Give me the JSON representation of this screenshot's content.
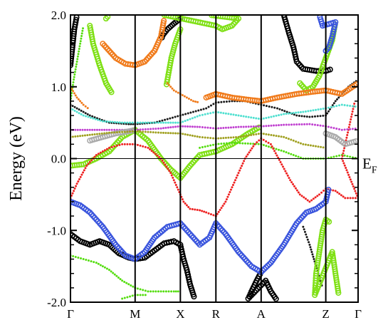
{
  "chart_data": {
    "type": "scatter",
    "ylabel": "Energy (eV)",
    "ylim": [
      -2.0,
      2.0
    ],
    "yticks": [
      {
        "value": 2.0,
        "label": "2.0"
      },
      {
        "value": 1.0,
        "label": "1.0"
      },
      {
        "value": 0.0,
        "label": "0.0"
      },
      {
        "value": -1.0,
        "label": "-1.0"
      },
      {
        "value": -2.0,
        "label": "-2.0"
      }
    ],
    "kpoints": [
      {
        "label": "Γ",
        "x": 0.0
      },
      {
        "label": "M",
        "x": 1.0
      },
      {
        "label": "X",
        "x": 1.7
      },
      {
        "label": "R",
        "x": 2.25
      },
      {
        "label": "A",
        "x": 2.95
      },
      {
        "label": "Z",
        "x": 3.95
      },
      {
        "label": "Γ",
        "x": 4.45
      }
    ],
    "fermi_label": "E",
    "fermi_sub": "F",
    "fermi_level": 0.0,
    "grid": false,
    "series": [
      {
        "color": "#000000",
        "marker": "ring",
        "points": [
          [
            0,
            -1.05
          ],
          [
            0.15,
            -1.15
          ],
          [
            0.3,
            -1.2
          ],
          [
            0.45,
            -1.15
          ],
          [
            0.6,
            -1.2
          ],
          [
            0.75,
            -1.32
          ],
          [
            0.9,
            -1.38
          ],
          [
            1.0,
            -1.4
          ],
          [
            1.15,
            -1.38
          ],
          [
            1.3,
            -1.28
          ],
          [
            1.45,
            -1.18
          ],
          [
            1.6,
            -1.15
          ],
          [
            1.7,
            -1.2
          ],
          [
            1.75,
            -1.4
          ],
          [
            1.8,
            -1.55
          ],
          [
            1.85,
            -1.75
          ],
          [
            1.92,
            -1.95
          ],
          [
            0.0,
            1.3
          ],
          [
            0.03,
            1.55
          ],
          [
            0.06,
            1.8
          ],
          [
            0.1,
            2.0
          ],
          [
            1.7,
            1.95
          ],
          [
            1.6,
            1.88
          ],
          [
            1.5,
            1.8
          ],
          [
            1.43,
            1.72
          ],
          [
            1.4,
            1.65
          ],
          [
            2.95,
            -1.58
          ],
          [
            2.88,
            -1.7
          ],
          [
            2.8,
            -1.85
          ],
          [
            2.75,
            -1.95
          ],
          [
            3.02,
            -1.7
          ],
          [
            3.1,
            -1.85
          ],
          [
            3.2,
            -1.98
          ],
          [
            3.3,
            2.0
          ],
          [
            3.38,
            1.75
          ],
          [
            3.45,
            1.55
          ],
          [
            3.5,
            1.35
          ],
          [
            3.6,
            1.25
          ],
          [
            3.8,
            1.22
          ],
          [
            3.95,
            1.22
          ],
          [
            4.05,
            1.25
          ]
        ]
      },
      {
        "color": "#1a1a1a",
        "marker": "dot",
        "points": [
          [
            0.0,
            0.75
          ],
          [
            0.3,
            0.6
          ],
          [
            0.6,
            0.5
          ],
          [
            0.9,
            0.48
          ],
          [
            1.0,
            0.48
          ],
          [
            1.3,
            0.5
          ],
          [
            1.5,
            0.55
          ],
          [
            1.7,
            0.6
          ],
          [
            1.9,
            0.65
          ],
          [
            2.1,
            0.7
          ],
          [
            2.25,
            0.78
          ],
          [
            2.5,
            0.8
          ],
          [
            2.7,
            0.8
          ],
          [
            2.95,
            0.75
          ],
          [
            3.2,
            0.7
          ],
          [
            3.5,
            0.6
          ],
          [
            3.7,
            0.58
          ],
          [
            3.95,
            0.6
          ],
          [
            4.1,
            0.8
          ],
          [
            4.3,
            1.0
          ],
          [
            4.45,
            1.1
          ],
          [
            3.6,
            -0.95
          ],
          [
            3.7,
            -1.2
          ],
          [
            3.8,
            -1.5
          ],
          [
            3.9,
            -1.8
          ]
        ]
      },
      {
        "color": "#7fe015",
        "marker": "ring",
        "points": [
          [
            0,
            -0.1
          ],
          [
            0.2,
            -0.08
          ],
          [
            0.4,
            0.0
          ],
          [
            0.6,
            0.1
          ],
          [
            0.8,
            0.3
          ],
          [
            1.0,
            0.4
          ],
          [
            1.2,
            0.25
          ],
          [
            1.4,
            0.0
          ],
          [
            1.55,
            -0.15
          ],
          [
            1.7,
            -0.27
          ],
          [
            1.85,
            -0.1
          ],
          [
            2.0,
            0.05
          ],
          [
            2.25,
            0.1
          ],
          [
            2.5,
            0.2
          ],
          [
            2.75,
            0.35
          ],
          [
            2.95,
            0.45
          ],
          [
            1.7,
            1.8
          ],
          [
            1.62,
            1.6
          ],
          [
            1.56,
            1.4
          ],
          [
            1.52,
            1.2
          ],
          [
            1.48,
            1.0
          ],
          [
            1.45,
            2.0
          ],
          [
            2.25,
            1.85
          ],
          [
            2.35,
            1.8
          ],
          [
            2.5,
            1.85
          ],
          [
            2.6,
            1.95
          ],
          [
            2.15,
            2.0
          ],
          [
            4.0,
            -0.88
          ],
          [
            3.95,
            -0.85
          ],
          [
            3.9,
            -1.0
          ],
          [
            3.85,
            -1.3
          ],
          [
            3.8,
            -1.6
          ],
          [
            3.78,
            -1.9
          ],
          [
            4.05,
            -1.3
          ],
          [
            4.1,
            -1.6
          ],
          [
            4.15,
            -1.9
          ],
          [
            0.3,
            1.85
          ],
          [
            0.35,
            1.6
          ],
          [
            0.45,
            1.3
          ],
          [
            0.55,
            1.05
          ],
          [
            0.65,
            0.9
          ],
          [
            0.55,
            1.95
          ],
          [
            0.6,
            2.0
          ],
          [
            3.55,
            1.05
          ],
          [
            3.65,
            0.95
          ],
          [
            3.75,
            1.0
          ],
          [
            3.85,
            1.15
          ],
          [
            3.95,
            1.4
          ],
          [
            4.05,
            1.65
          ],
          [
            4.1,
            1.9
          ]
        ]
      },
      {
        "color": "#55dd10",
        "marker": "dot",
        "points": [
          [
            0.0,
            -1.35
          ],
          [
            0.2,
            -1.4
          ],
          [
            0.4,
            -1.45
          ],
          [
            0.6,
            -1.55
          ],
          [
            0.8,
            -1.7
          ],
          [
            1.0,
            -1.8
          ],
          [
            1.2,
            -1.85
          ],
          [
            1.4,
            -1.85
          ],
          [
            1.6,
            -1.85
          ],
          [
            1.7,
            -1.85
          ],
          [
            0.8,
            -1.95
          ],
          [
            1.0,
            -1.9
          ],
          [
            1.2,
            -1.9
          ],
          [
            0.0,
            0.8
          ],
          [
            0.05,
            1.1
          ],
          [
            0.1,
            1.35
          ],
          [
            0.15,
            1.6
          ],
          [
            0.2,
            1.85
          ],
          [
            2.0,
            0.15
          ],
          [
            2.25,
            0.2
          ],
          [
            2.5,
            0.22
          ],
          [
            2.95,
            0.2
          ],
          [
            3.3,
            0.1
          ],
          [
            3.6,
            0.0
          ],
          [
            3.95,
            0.0
          ],
          [
            4.2,
            0.05
          ],
          [
            4.45,
            0.0
          ]
        ]
      },
      {
        "color": "#f07a1a",
        "marker": "ring",
        "points": [
          [
            0.5,
            1.6
          ],
          [
            0.7,
            1.4
          ],
          [
            0.85,
            1.32
          ],
          [
            1.0,
            1.3
          ],
          [
            1.15,
            1.35
          ],
          [
            1.3,
            1.5
          ],
          [
            1.4,
            1.7
          ],
          [
            1.45,
            1.95
          ],
          [
            2.1,
            0.85
          ],
          [
            2.25,
            0.9
          ],
          [
            2.5,
            0.85
          ],
          [
            2.75,
            0.82
          ],
          [
            2.95,
            0.8
          ],
          [
            3.2,
            0.85
          ],
          [
            3.5,
            0.9
          ],
          [
            3.75,
            0.93
          ],
          [
            3.95,
            0.95
          ],
          [
            4.2,
            0.9
          ],
          [
            4.45,
            1.05
          ]
        ]
      },
      {
        "color": "#f07a1a",
        "marker": "dot",
        "points": [
          [
            0.0,
            1.0
          ],
          [
            0.1,
            0.85
          ],
          [
            0.2,
            0.75
          ],
          [
            0.3,
            0.68
          ],
          [
            1.5,
            1.05
          ],
          [
            1.6,
            0.95
          ],
          [
            1.7,
            0.9
          ],
          [
            1.8,
            0.85
          ],
          [
            1.9,
            0.8
          ],
          [
            2.0,
            0.78
          ]
        ]
      },
      {
        "color": "#ee2222",
        "marker": "dot",
        "points": [
          [
            0.0,
            -0.55
          ],
          [
            0.1,
            -0.35
          ],
          [
            0.25,
            -0.1
          ],
          [
            0.4,
            0.05
          ],
          [
            0.6,
            0.15
          ],
          [
            0.8,
            0.2
          ],
          [
            1.0,
            0.2
          ],
          [
            1.2,
            0.15
          ],
          [
            1.4,
            0.0
          ],
          [
            1.55,
            -0.2
          ],
          [
            1.65,
            -0.4
          ],
          [
            1.75,
            -0.6
          ],
          [
            1.85,
            -0.7
          ],
          [
            2.0,
            -0.72
          ],
          [
            2.1,
            -0.75
          ],
          [
            2.25,
            -0.8
          ],
          [
            2.25,
            -0.8
          ],
          [
            2.4,
            -0.6
          ],
          [
            2.55,
            -0.3
          ],
          [
            2.7,
            0.0
          ],
          [
            2.85,
            0.2
          ],
          [
            2.95,
            0.28
          ],
          [
            3.1,
            0.2
          ],
          [
            3.25,
            -0.05
          ],
          [
            3.4,
            -0.3
          ],
          [
            3.55,
            -0.5
          ],
          [
            3.7,
            -0.6
          ],
          [
            3.85,
            -0.5
          ],
          [
            3.95,
            -0.42
          ],
          [
            4.1,
            -0.45
          ],
          [
            4.25,
            -0.55
          ],
          [
            4.45,
            -0.55
          ],
          [
            4.2,
            0.0
          ],
          [
            4.3,
            0.4
          ],
          [
            4.4,
            0.8
          ]
        ]
      },
      {
        "color": "#3a55dd",
        "marker": "ring",
        "points": [
          [
            0.0,
            -0.6
          ],
          [
            0.15,
            -0.65
          ],
          [
            0.3,
            -0.75
          ],
          [
            0.5,
            -0.95
          ],
          [
            0.7,
            -1.2
          ],
          [
            0.85,
            -1.35
          ],
          [
            1.0,
            -1.4
          ],
          [
            1.15,
            -1.3
          ],
          [
            1.3,
            -1.1
          ],
          [
            1.5,
            -0.95
          ],
          [
            1.7,
            -0.9
          ],
          [
            1.85,
            -1.05
          ],
          [
            2.0,
            -1.2
          ],
          [
            2.15,
            -1.1
          ],
          [
            2.25,
            -0.9
          ],
          [
            2.4,
            -1.05
          ],
          [
            2.6,
            -1.3
          ],
          [
            2.8,
            -1.5
          ],
          [
            2.95,
            -1.58
          ],
          [
            3.1,
            -1.45
          ],
          [
            3.3,
            -1.2
          ],
          [
            3.5,
            -0.9
          ],
          [
            3.65,
            -0.75
          ],
          [
            3.8,
            -0.7
          ],
          [
            3.95,
            -0.6
          ],
          [
            4.0,
            -0.4
          ],
          [
            3.95,
            1.5
          ],
          [
            4.0,
            1.55
          ],
          [
            4.05,
            1.7
          ],
          [
            4.1,
            1.9
          ],
          [
            3.9,
            1.85
          ],
          [
            3.85,
            2.0
          ]
        ]
      },
      {
        "color": "#50e0d0",
        "marker": "dot",
        "points": [
          [
            0.0,
            0.7
          ],
          [
            0.2,
            0.6
          ],
          [
            0.5,
            0.52
          ],
          [
            0.8,
            0.5
          ],
          [
            1.0,
            0.5
          ],
          [
            1.4,
            0.5
          ],
          [
            1.7,
            0.5
          ],
          [
            2.0,
            0.6
          ],
          [
            2.25,
            0.65
          ],
          [
            2.6,
            0.6
          ],
          [
            2.95,
            0.55
          ],
          [
            3.3,
            0.62
          ],
          [
            3.6,
            0.65
          ],
          [
            3.95,
            0.7
          ],
          [
            4.2,
            0.75
          ],
          [
            4.45,
            0.72
          ]
        ]
      },
      {
        "color": "#c040d0",
        "marker": "dot",
        "points": [
          [
            0.0,
            0.4
          ],
          [
            0.3,
            0.4
          ],
          [
            0.6,
            0.4
          ],
          [
            1.0,
            0.4
          ],
          [
            1.4,
            0.42
          ],
          [
            1.7,
            0.45
          ],
          [
            2.0,
            0.44
          ],
          [
            2.25,
            0.42
          ],
          [
            2.6,
            0.44
          ],
          [
            2.95,
            0.45
          ],
          [
            3.3,
            0.47
          ],
          [
            3.7,
            0.48
          ],
          [
            3.95,
            0.45
          ],
          [
            4.2,
            0.4
          ],
          [
            4.45,
            0.42
          ]
        ]
      },
      {
        "color": "#aaaaaa",
        "marker": "ring",
        "points": [
          [
            0.3,
            0.25
          ],
          [
            0.5,
            0.3
          ],
          [
            0.7,
            0.35
          ],
          [
            0.9,
            0.38
          ],
          [
            1.0,
            0.4
          ],
          [
            3.95,
            0.35
          ],
          [
            4.1,
            0.3
          ],
          [
            4.25,
            0.2
          ],
          [
            4.45,
            0.25
          ]
        ]
      },
      {
        "color": "#a0a020",
        "marker": "dot",
        "points": [
          [
            0.0,
            0.3
          ],
          [
            0.3,
            0.33
          ],
          [
            0.6,
            0.36
          ],
          [
            1.0,
            0.38
          ],
          [
            1.4,
            0.36
          ],
          [
            1.7,
            0.35
          ],
          [
            2.0,
            0.3
          ],
          [
            2.25,
            0.28
          ],
          [
            2.6,
            0.3
          ],
          [
            2.95,
            0.35
          ],
          [
            3.3,
            0.3
          ],
          [
            3.6,
            0.2
          ],
          [
            3.95,
            0.15
          ]
        ]
      }
    ]
  }
}
